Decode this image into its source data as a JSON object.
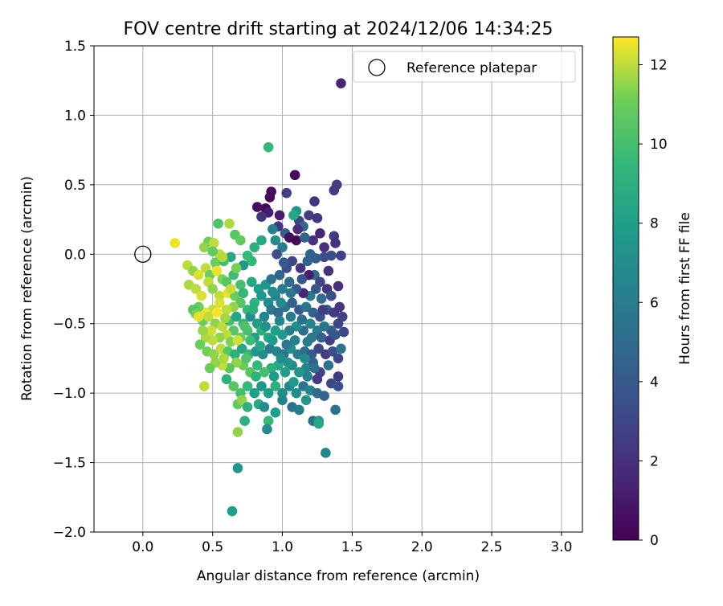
{
  "chart_data": {
    "type": "scatter",
    "title": "FOV centre drift starting at 2024/12/06 14:34:25",
    "xlabel": "Angular distance from reference (arcmin)",
    "ylabel": "Rotation from reference (arcmin)",
    "xlim": [
      -0.35,
      3.15
    ],
    "ylim": [
      -2.0,
      1.5
    ],
    "x_ticks": [
      0.0,
      0.5,
      1.0,
      1.5,
      2.0,
      2.5,
      3.0
    ],
    "x_tick_labels": [
      "0.0",
      "0.5",
      "1.0",
      "1.5",
      "2.0",
      "2.5",
      "3.0"
    ],
    "y_ticks": [
      -2.0,
      -1.5,
      -1.0,
      -0.5,
      0.0,
      0.5,
      1.0,
      1.5
    ],
    "y_tick_labels": [
      "−2.0",
      "−1.5",
      "−1.0",
      "−0.5",
      "0.0",
      "0.5",
      "1.0",
      "1.5"
    ],
    "grid": true,
    "legend": {
      "position": "top-right",
      "entries": [
        "Reference platepar"
      ]
    },
    "reference_point": {
      "x": 0.0,
      "y": 0.0,
      "marker": "open-circle",
      "color": "#000000"
    },
    "colorbar": {
      "label": "Hours from first FF file",
      "colormap": "viridis",
      "min": 0,
      "max": 12.7,
      "ticks": [
        0,
        2,
        4,
        6,
        8,
        10,
        12
      ],
      "tick_labels": [
        "0",
        "2",
        "4",
        "6",
        "8",
        "10",
        "12"
      ]
    },
    "points": [
      [
        1.42,
        1.23,
        1.5
      ],
      [
        0.9,
        0.77,
        9.5
      ],
      [
        1.39,
        0.5,
        2.5
      ],
      [
        1.37,
        0.46,
        2.5
      ],
      [
        1.09,
        0.57,
        0.3
      ],
      [
        0.92,
        0.45,
        0.4
      ],
      [
        0.91,
        0.41,
        0.4
      ],
      [
        1.03,
        0.44,
        2.8
      ],
      [
        0.82,
        0.34,
        0.5
      ],
      [
        0.88,
        0.33,
        0.3
      ],
      [
        0.9,
        0.3,
        1.2
      ],
      [
        0.85,
        0.27,
        2.0
      ],
      [
        1.23,
        0.38,
        2.2
      ],
      [
        1.19,
        0.28,
        2.5
      ],
      [
        1.25,
        0.26,
        2.2
      ],
      [
        1.1,
        0.31,
        7.5
      ],
      [
        1.12,
        0.24,
        3.0
      ],
      [
        1.08,
        0.28,
        8.5
      ],
      [
        0.97,
        0.2,
        2.2
      ],
      [
        0.93,
        0.18,
        6.3
      ],
      [
        1.02,
        0.15,
        4.2
      ],
      [
        1.15,
        0.2,
        4.8
      ],
      [
        1.22,
        0.1,
        2.0
      ],
      [
        1.3,
        0.05,
        2.0
      ],
      [
        1.37,
        0.13,
        2.5
      ],
      [
        1.38,
        0.08,
        2.0
      ],
      [
        1.35,
        -0.01,
        3.5
      ],
      [
        1.42,
        -0.01,
        2.8
      ],
      [
        1.3,
        -0.02,
        3.2
      ],
      [
        1.24,
        -0.03,
        4.0
      ],
      [
        1.2,
        0.0,
        4.5
      ],
      [
        1.05,
        0.12,
        0.5
      ],
      [
        1.1,
        0.1,
        0.3
      ],
      [
        1.0,
        0.05,
        6.0
      ],
      [
        0.95,
        0.1,
        7.0
      ],
      [
        0.85,
        0.1,
        8.5
      ],
      [
        0.8,
        0.05,
        9.0
      ],
      [
        0.75,
        -0.01,
        9.5
      ],
      [
        0.78,
        -0.05,
        9.5
      ],
      [
        0.72,
        -0.08,
        7.5
      ],
      [
        0.62,
        0.22,
        11.8
      ],
      [
        0.54,
        0.22,
        10.2
      ],
      [
        0.66,
        0.14,
        10.5
      ],
      [
        0.7,
        0.1,
        10.8
      ],
      [
        0.47,
        0.09,
        11.0
      ],
      [
        0.44,
        0.05,
        11.5
      ],
      [
        0.51,
        0.08,
        12.0
      ],
      [
        0.23,
        0.08,
        12.5
      ],
      [
        0.55,
        0.0,
        12.0
      ],
      [
        0.52,
        -0.06,
        11.0
      ],
      [
        0.63,
        -0.02,
        8.5
      ],
      [
        0.58,
        -0.05,
        10.0
      ],
      [
        0.32,
        -0.08,
        12.0
      ],
      [
        0.36,
        -0.12,
        11.5
      ],
      [
        0.4,
        -0.15,
        12.3
      ],
      [
        0.45,
        -0.1,
        12.0
      ],
      [
        0.48,
        -0.15,
        11.0
      ],
      [
        0.53,
        -0.12,
        12.5
      ],
      [
        0.57,
        -0.18,
        11.3
      ],
      [
        0.6,
        -0.2,
        10.5
      ],
      [
        0.65,
        -0.15,
        9.8
      ],
      [
        0.7,
        -0.22,
        10.0
      ],
      [
        0.33,
        -0.22,
        11.8
      ],
      [
        0.38,
        -0.25,
        12.0
      ],
      [
        0.42,
        -0.3,
        12.3
      ],
      [
        0.47,
        -0.2,
        12.0
      ],
      [
        0.5,
        -0.25,
        11.5
      ],
      [
        0.55,
        -0.3,
        12.0
      ],
      [
        0.61,
        -0.28,
        12.5
      ],
      [
        0.66,
        -0.3,
        11.0
      ],
      [
        0.72,
        -0.28,
        9.5
      ],
      [
        0.78,
        -0.2,
        8.5
      ],
      [
        0.83,
        -0.25,
        8.0
      ],
      [
        0.88,
        -0.22,
        7.5
      ],
      [
        0.92,
        -0.18,
        5.5
      ],
      [
        0.98,
        -0.15,
        4.5
      ],
      [
        1.03,
        -0.1,
        3.5
      ],
      [
        1.07,
        -0.05,
        3.0
      ],
      [
        1.13,
        -0.1,
        2.2
      ],
      [
        1.18,
        -0.05,
        4.5
      ],
      [
        1.23,
        -0.15,
        5.0
      ],
      [
        1.27,
        -0.2,
        3.0
      ],
      [
        1.32,
        -0.25,
        2.2
      ],
      [
        1.4,
        -0.23,
        2.0
      ],
      [
        1.35,
        -0.3,
        3.5
      ],
      [
        1.28,
        -0.32,
        5.0
      ],
      [
        1.2,
        -0.3,
        6.0
      ],
      [
        1.15,
        -0.28,
        1.5
      ],
      [
        1.1,
        -0.25,
        4.0
      ],
      [
        1.05,
        -0.2,
        5.0
      ],
      [
        1.0,
        -0.25,
        6.0
      ],
      [
        0.95,
        -0.3,
        6.5
      ],
      [
        0.9,
        -0.35,
        7.0
      ],
      [
        0.85,
        -0.3,
        7.5
      ],
      [
        0.8,
        -0.35,
        9.0
      ],
      [
        0.75,
        -0.4,
        9.5
      ],
      [
        0.7,
        -0.35,
        10.5
      ],
      [
        0.65,
        -0.38,
        11.5
      ],
      [
        0.6,
        -0.4,
        12.0
      ],
      [
        0.55,
        -0.35,
        12.3
      ],
      [
        0.5,
        -0.4,
        12.0
      ],
      [
        0.45,
        -0.42,
        12.5
      ],
      [
        0.4,
        -0.38,
        11.0
      ],
      [
        0.36,
        -0.4,
        10.5
      ],
      [
        0.38,
        -0.43,
        11.2
      ],
      [
        0.43,
        -0.48,
        11.0
      ],
      [
        0.47,
        -0.45,
        12.0
      ],
      [
        0.52,
        -0.5,
        11.5
      ],
      [
        0.57,
        -0.52,
        12.0
      ],
      [
        0.62,
        -0.48,
        10.0
      ],
      [
        0.67,
        -0.45,
        8.5
      ],
      [
        0.72,
        -0.5,
        9.5
      ],
      [
        0.77,
        -0.45,
        7.0
      ],
      [
        0.82,
        -0.5,
        8.0
      ],
      [
        0.87,
        -0.45,
        6.5
      ],
      [
        0.92,
        -0.4,
        6.0
      ],
      [
        0.97,
        -0.42,
        5.0
      ],
      [
        1.02,
        -0.38,
        5.5
      ],
      [
        1.07,
        -0.35,
        4.5
      ],
      [
        1.12,
        -0.4,
        4.0
      ],
      [
        1.17,
        -0.38,
        5.5
      ],
      [
        1.22,
        -0.42,
        4.5
      ],
      [
        1.27,
        -0.45,
        3.5
      ],
      [
        1.32,
        -0.4,
        4.0
      ],
      [
        1.37,
        -0.42,
        2.5
      ],
      [
        1.41,
        -0.38,
        2.2
      ],
      [
        1.43,
        -0.45,
        2.8
      ],
      [
        1.4,
        -0.5,
        3.0
      ],
      [
        1.44,
        -0.56,
        3.0
      ],
      [
        1.35,
        -0.55,
        4.0
      ],
      [
        1.3,
        -0.52,
        5.5
      ],
      [
        1.25,
        -0.55,
        6.0
      ],
      [
        1.2,
        -0.5,
        6.5
      ],
      [
        1.15,
        -0.55,
        5.0
      ],
      [
        1.1,
        -0.52,
        7.0
      ],
      [
        1.05,
        -0.55,
        6.0
      ],
      [
        1.0,
        -0.58,
        7.5
      ],
      [
        0.95,
        -0.55,
        8.0
      ],
      [
        0.9,
        -0.6,
        8.5
      ],
      [
        0.85,
        -0.55,
        9.0
      ],
      [
        0.8,
        -0.6,
        8.0
      ],
      [
        0.75,
        -0.55,
        10.0
      ],
      [
        0.7,
        -0.6,
        11.0
      ],
      [
        0.65,
        -0.55,
        10.5
      ],
      [
        0.6,
        -0.58,
        12.0
      ],
      [
        0.55,
        -0.6,
        11.5
      ],
      [
        0.5,
        -0.62,
        12.0
      ],
      [
        0.45,
        -0.6,
        11.8
      ],
      [
        0.41,
        -0.65,
        11.0
      ],
      [
        0.46,
        -0.7,
        11.2
      ],
      [
        0.51,
        -0.72,
        11.5
      ],
      [
        0.56,
        -0.68,
        12.0
      ],
      [
        0.61,
        -0.7,
        10.5
      ],
      [
        0.66,
        -0.72,
        9.0
      ],
      [
        0.71,
        -0.68,
        8.5
      ],
      [
        0.76,
        -0.72,
        9.5
      ],
      [
        0.81,
        -0.7,
        7.5
      ],
      [
        0.86,
        -0.72,
        7.0
      ],
      [
        0.91,
        -0.68,
        6.0
      ],
      [
        0.96,
        -0.7,
        6.5
      ],
      [
        1.01,
        -0.72,
        5.5
      ],
      [
        1.06,
        -0.68,
        7.0
      ],
      [
        1.11,
        -0.72,
        6.0
      ],
      [
        1.16,
        -0.7,
        5.0
      ],
      [
        1.21,
        -0.72,
        4.0
      ],
      [
        1.26,
        -0.68,
        3.0
      ],
      [
        1.31,
        -0.72,
        2.5
      ],
      [
        1.36,
        -0.7,
        3.5
      ],
      [
        1.42,
        -0.68,
        5.5
      ],
      [
        1.4,
        -0.75,
        3.0
      ],
      [
        1.33,
        -0.8,
        5.5
      ],
      [
        1.27,
        -0.85,
        2.8
      ],
      [
        1.22,
        -0.78,
        4.5
      ],
      [
        1.17,
        -0.82,
        6.5
      ],
      [
        1.12,
        -0.85,
        7.5
      ],
      [
        1.07,
        -0.8,
        7.0
      ],
      [
        1.02,
        -0.85,
        8.0
      ],
      [
        0.97,
        -0.8,
        8.5
      ],
      [
        0.92,
        -0.82,
        9.0
      ],
      [
        0.87,
        -0.85,
        10.0
      ],
      [
        0.82,
        -0.8,
        9.5
      ],
      [
        0.77,
        -0.85,
        10.5
      ],
      [
        0.72,
        -0.8,
        11.0
      ],
      [
        0.67,
        -0.78,
        11.5
      ],
      [
        0.62,
        -0.82,
        10.5
      ],
      [
        0.57,
        -0.8,
        12.0
      ],
      [
        0.52,
        -0.78,
        11.5
      ],
      [
        0.48,
        -0.82,
        11.0
      ],
      [
        0.44,
        -0.95,
        12.0
      ],
      [
        0.6,
        -0.9,
        9.0
      ],
      [
        0.65,
        -0.95,
        10.5
      ],
      [
        0.7,
        -1.0,
        10.0
      ],
      [
        0.75,
        -0.95,
        9.5
      ],
      [
        0.8,
        -1.0,
        8.0
      ],
      [
        0.85,
        -0.95,
        7.5
      ],
      [
        0.9,
        -1.0,
        8.0
      ],
      [
        0.95,
        -0.95,
        9.0
      ],
      [
        1.0,
        -1.0,
        7.0
      ],
      [
        1.05,
        -0.95,
        6.5
      ],
      [
        1.1,
        -1.0,
        7.0
      ],
      [
        1.15,
        -0.95,
        5.5
      ],
      [
        1.2,
        -0.98,
        6.5
      ],
      [
        1.25,
        -1.0,
        5.0
      ],
      [
        1.3,
        -1.02,
        4.5
      ],
      [
        1.35,
        -0.93,
        3.0
      ],
      [
        1.4,
        -0.88,
        2.5
      ],
      [
        1.4,
        -0.95,
        3.5
      ],
      [
        1.25,
        -0.9,
        2.5
      ],
      [
        0.68,
        -1.08,
        10.8
      ],
      [
        0.71,
        -1.05,
        11.5
      ],
      [
        0.75,
        -1.1,
        9.0
      ],
      [
        0.83,
        -1.08,
        8.5
      ],
      [
        0.87,
        -1.1,
        7.0
      ],
      [
        0.95,
        -1.14,
        8.0
      ],
      [
        1.0,
        -1.05,
        6.5
      ],
      [
        1.07,
        -1.1,
        5.5
      ],
      [
        1.12,
        -1.12,
        6.0
      ],
      [
        1.17,
        -1.05,
        7.5
      ],
      [
        1.22,
        -1.2,
        5.0
      ],
      [
        1.26,
        -1.2,
        7.5
      ],
      [
        1.26,
        -1.22,
        8.5
      ],
      [
        1.38,
        -1.12,
        5.5
      ],
      [
        0.73,
        -1.2,
        9.0
      ],
      [
        0.9,
        -1.2,
        9.5
      ],
      [
        0.89,
        -1.26,
        7.0
      ],
      [
        0.68,
        -1.28,
        11.5
      ],
      [
        1.31,
        -1.43,
        6.5
      ],
      [
        0.68,
        -1.54,
        7.5
      ],
      [
        0.64,
        -1.85,
        8.0
      ],
      [
        1.28,
        -0.6,
        4.5
      ],
      [
        1.18,
        -0.63,
        6.0
      ],
      [
        0.98,
        -0.48,
        6.5
      ],
      [
        0.84,
        -0.66,
        8.5
      ],
      [
        0.79,
        -0.4,
        9.0
      ],
      [
        0.93,
        -0.27,
        6.8
      ],
      [
        1.03,
        -0.65,
        5.8
      ],
      [
        1.14,
        -0.47,
        5.2
      ],
      [
        1.24,
        -0.25,
        3.8
      ],
      [
        0.88,
        -0.52,
        7.2
      ],
      [
        1.08,
        -0.92,
        7.6
      ],
      [
        0.99,
        -0.75,
        7.0
      ],
      [
        0.94,
        -0.88,
        7.8
      ],
      [
        1.18,
        -0.88,
        6.2
      ],
      [
        1.29,
        -0.4,
        2.6
      ],
      [
        1.06,
        -0.28,
        5.6
      ],
      [
        0.96,
        0.0,
        3.5
      ],
      [
        1.01,
        -0.06,
        4.0
      ],
      [
        1.11,
        0.18,
        1.8
      ],
      [
        1.16,
        0.12,
        4.5
      ],
      [
        1.27,
        0.15,
        1.5
      ],
      [
        0.98,
        0.28,
        1.0
      ],
      [
        0.58,
        -0.75,
        11.8
      ],
      [
        0.63,
        -0.63,
        11.3
      ],
      [
        0.68,
        -0.62,
        12.2
      ],
      [
        0.74,
        -0.75,
        10.3
      ],
      [
        0.53,
        -0.42,
        12.6
      ],
      [
        0.49,
        -0.55,
        12.2
      ],
      [
        0.43,
        -0.55,
        11.6
      ],
      [
        0.4,
        -0.45,
        12.4
      ],
      [
        0.59,
        -0.46,
        11.7
      ],
      [
        0.63,
        -0.25,
        12.1
      ],
      [
        0.67,
        -0.1,
        11.2
      ],
      [
        0.57,
        -0.02,
        11.9
      ],
      [
        0.5,
        0.02,
        10.8
      ],
      [
        1.33,
        -0.12,
        2.1
      ],
      [
        1.19,
        -0.15,
        1.2
      ],
      [
        1.14,
        -0.18,
        3.8
      ],
      [
        1.06,
        -0.45,
        5.9
      ],
      [
        0.99,
        -0.35,
        6.7
      ],
      [
        1.34,
        -0.62,
        2.7
      ],
      [
        1.38,
        -0.58,
        3.9
      ],
      [
        1.23,
        -0.82,
        5.3
      ],
      [
        1.16,
        -0.75,
        6.8
      ],
      [
        1.04,
        -0.78,
        7.3
      ],
      [
        0.81,
        -0.88,
        9.2
      ],
      [
        0.77,
        -0.62,
        9.8
      ],
      [
        0.73,
        -0.52,
        10.2
      ],
      [
        0.93,
        -0.62,
        7.9
      ],
      [
        1.09,
        -0.62,
        6.4
      ],
      [
        1.21,
        -0.6,
        5.7
      ]
    ]
  }
}
